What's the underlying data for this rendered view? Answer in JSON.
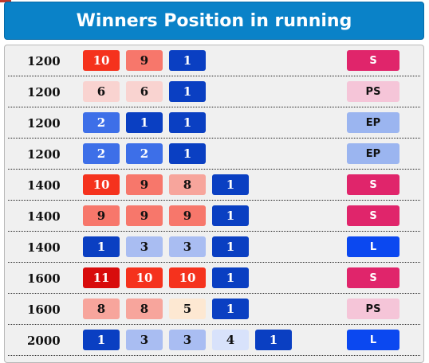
{
  "header": {
    "title": "Winners Position in running"
  },
  "colors": {
    "p1_dark": "#0a3fc2",
    "p1_mid": "#3d6fe8",
    "p3_light": "#a9bdf2",
    "p4_pale": "#d8e2fb",
    "p5_cream": "#fde8d2",
    "p6_pink": "#f9d3d0",
    "p8_salmon": "#f7a59c",
    "p9_coral": "#f7776b",
    "p10_red": "#f5321d",
    "p11_dark_red": "#d80c0c",
    "S": "#e0256b",
    "PS": "#f5c5d8",
    "EP": "#9bb5f0",
    "L": "#0b48f0"
  },
  "rows": [
    {
      "distance": "1200",
      "positions": [
        {
          "value": "10",
          "bg": "#f5321d",
          "fg": "#ffffff"
        },
        {
          "value": "9",
          "bg": "#f7776b",
          "fg": "#111111"
        },
        {
          "value": "1",
          "bg": "#0a3fc2",
          "fg": "#ffffff"
        }
      ],
      "style": {
        "label": "S",
        "bg": "#e0256b",
        "fg": "#ffffff"
      }
    },
    {
      "distance": "1200",
      "positions": [
        {
          "value": "6",
          "bg": "#f9d3d0",
          "fg": "#111111"
        },
        {
          "value": "6",
          "bg": "#f9d3d0",
          "fg": "#111111"
        },
        {
          "value": "1",
          "bg": "#0a3fc2",
          "fg": "#ffffff"
        }
      ],
      "style": {
        "label": "PS",
        "bg": "#f5c5d8",
        "fg": "#111111"
      }
    },
    {
      "distance": "1200",
      "positions": [
        {
          "value": "2",
          "bg": "#3d6fe8",
          "fg": "#ffffff"
        },
        {
          "value": "1",
          "bg": "#0a3fc2",
          "fg": "#ffffff"
        },
        {
          "value": "1",
          "bg": "#0a3fc2",
          "fg": "#ffffff"
        }
      ],
      "style": {
        "label": "EP",
        "bg": "#9bb5f0",
        "fg": "#111111"
      }
    },
    {
      "distance": "1200",
      "positions": [
        {
          "value": "2",
          "bg": "#3d6fe8",
          "fg": "#ffffff"
        },
        {
          "value": "2",
          "bg": "#3d6fe8",
          "fg": "#ffffff"
        },
        {
          "value": "1",
          "bg": "#0a3fc2",
          "fg": "#ffffff"
        }
      ],
      "style": {
        "label": "EP",
        "bg": "#9bb5f0",
        "fg": "#111111"
      }
    },
    {
      "distance": "1400",
      "positions": [
        {
          "value": "10",
          "bg": "#f5321d",
          "fg": "#ffffff"
        },
        {
          "value": "9",
          "bg": "#f7776b",
          "fg": "#111111"
        },
        {
          "value": "8",
          "bg": "#f7a59c",
          "fg": "#111111"
        },
        {
          "value": "1",
          "bg": "#0a3fc2",
          "fg": "#ffffff"
        }
      ],
      "style": {
        "label": "S",
        "bg": "#e0256b",
        "fg": "#ffffff"
      }
    },
    {
      "distance": "1400",
      "positions": [
        {
          "value": "9",
          "bg": "#f7776b",
          "fg": "#111111"
        },
        {
          "value": "9",
          "bg": "#f7776b",
          "fg": "#111111"
        },
        {
          "value": "9",
          "bg": "#f7776b",
          "fg": "#111111"
        },
        {
          "value": "1",
          "bg": "#0a3fc2",
          "fg": "#ffffff"
        }
      ],
      "style": {
        "label": "S",
        "bg": "#e0256b",
        "fg": "#ffffff"
      }
    },
    {
      "distance": "1400",
      "positions": [
        {
          "value": "1",
          "bg": "#0a3fc2",
          "fg": "#ffffff"
        },
        {
          "value": "3",
          "bg": "#a9bdf2",
          "fg": "#111111"
        },
        {
          "value": "3",
          "bg": "#a9bdf2",
          "fg": "#111111"
        },
        {
          "value": "1",
          "bg": "#0a3fc2",
          "fg": "#ffffff"
        }
      ],
      "style": {
        "label": "L",
        "bg": "#0b48f0",
        "fg": "#ffffff"
      }
    },
    {
      "distance": "1600",
      "positions": [
        {
          "value": "11",
          "bg": "#d80c0c",
          "fg": "#ffffff"
        },
        {
          "value": "10",
          "bg": "#f5321d",
          "fg": "#ffffff"
        },
        {
          "value": "10",
          "bg": "#f5321d",
          "fg": "#ffffff"
        },
        {
          "value": "1",
          "bg": "#0a3fc2",
          "fg": "#ffffff"
        }
      ],
      "style": {
        "label": "S",
        "bg": "#e0256b",
        "fg": "#ffffff"
      }
    },
    {
      "distance": "1600",
      "positions": [
        {
          "value": "8",
          "bg": "#f7a59c",
          "fg": "#111111"
        },
        {
          "value": "8",
          "bg": "#f7a59c",
          "fg": "#111111"
        },
        {
          "value": "5",
          "bg": "#fde8d2",
          "fg": "#111111"
        },
        {
          "value": "1",
          "bg": "#0a3fc2",
          "fg": "#ffffff"
        }
      ],
      "style": {
        "label": "PS",
        "bg": "#f5c5d8",
        "fg": "#111111"
      }
    },
    {
      "distance": "2000",
      "positions": [
        {
          "value": "1",
          "bg": "#0a3fc2",
          "fg": "#ffffff"
        },
        {
          "value": "3",
          "bg": "#a9bdf2",
          "fg": "#111111"
        },
        {
          "value": "3",
          "bg": "#a9bdf2",
          "fg": "#111111"
        },
        {
          "value": "4",
          "bg": "#d8e2fb",
          "fg": "#111111"
        },
        {
          "value": "1",
          "bg": "#0a3fc2",
          "fg": "#ffffff"
        }
      ],
      "style": {
        "label": "L",
        "bg": "#0b48f0",
        "fg": "#ffffff"
      }
    }
  ]
}
